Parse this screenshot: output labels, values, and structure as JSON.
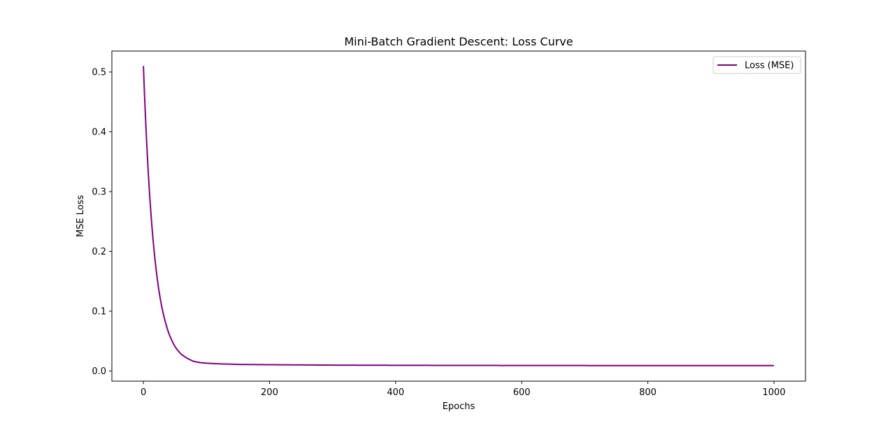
{
  "chart_data": {
    "type": "line",
    "title": "Mini-Batch Gradient Descent: Loss Curve",
    "xlabel": "Epochs",
    "ylabel": "MSE Loss",
    "xlim": [
      -50,
      1050
    ],
    "ylim": [
      -0.017,
      0.535
    ],
    "xticks": [
      0,
      200,
      400,
      600,
      800,
      1000
    ],
    "xtick_labels": [
      "0",
      "200",
      "400",
      "600",
      "800",
      "1000"
    ],
    "yticks": [
      0.0,
      0.1,
      0.2,
      0.3,
      0.4,
      0.5
    ],
    "ytick_labels": [
      "0.0",
      "0.1",
      "0.2",
      "0.3",
      "0.4",
      "0.5"
    ],
    "grid": false,
    "legend_position": "upper right",
    "series": [
      {
        "name": "Loss (MSE)",
        "color": "#800080",
        "x": [
          0,
          5,
          10,
          15,
          20,
          25,
          30,
          40,
          50,
          60,
          70,
          80,
          90,
          100,
          120,
          150,
          200,
          300,
          400,
          500,
          600,
          700,
          800,
          900,
          1000
        ],
        "y": [
          0.51,
          0.386,
          0.293,
          0.223,
          0.171,
          0.132,
          0.103,
          0.064,
          0.041,
          0.028,
          0.021,
          0.016,
          0.014,
          0.013,
          0.012,
          0.011,
          0.0105,
          0.0098,
          0.0095,
          0.0093,
          0.0092,
          0.0091,
          0.009,
          0.009,
          0.009
        ]
      }
    ]
  }
}
